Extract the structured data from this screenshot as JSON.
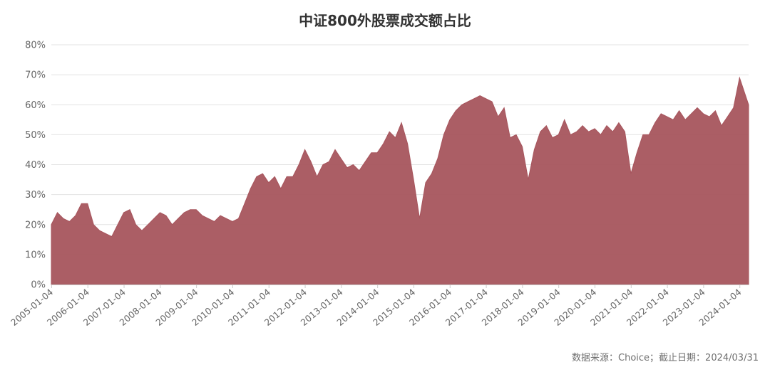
{
  "chart_data": {
    "type": "area",
    "title": "中证800外股票成交额占比",
    "source": "数据来源：Choice；截止日期：2024/03/31",
    "xlabel": "",
    "ylabel": "",
    "ylim": [
      0,
      0.8
    ],
    "yticks": [
      "0%",
      "10%",
      "20%",
      "30%",
      "40%",
      "50%",
      "60%",
      "70%",
      "80%"
    ],
    "xticks": [
      "2005-01-04",
      "2006-01-04",
      "2007-01-04",
      "2008-01-04",
      "2009-01-04",
      "2010-01-04",
      "2011-01-04",
      "2012-01-04",
      "2013-01-04",
      "2014-01-04",
      "2015-01-04",
      "2016-01-04",
      "2017-01-04",
      "2018-01-04",
      "2019-01-04",
      "2020-01-04",
      "2021-01-04",
      "2022-01-04",
      "2023-01-04",
      "2024-01-04"
    ],
    "grid": true,
    "color": "#a7555d",
    "x": [
      "2005-01",
      "2005-03",
      "2005-05",
      "2005-07",
      "2005-09",
      "2005-11",
      "2006-01",
      "2006-03",
      "2006-05",
      "2006-07",
      "2006-09",
      "2006-11",
      "2007-01",
      "2007-03",
      "2007-05",
      "2007-07",
      "2007-09",
      "2007-11",
      "2008-01",
      "2008-03",
      "2008-05",
      "2008-07",
      "2008-09",
      "2008-11",
      "2009-01",
      "2009-03",
      "2009-05",
      "2009-07",
      "2009-09",
      "2009-11",
      "2010-01",
      "2010-03",
      "2010-05",
      "2010-07",
      "2010-09",
      "2010-11",
      "2011-01",
      "2011-03",
      "2011-05",
      "2011-07",
      "2011-09",
      "2011-11",
      "2012-01",
      "2012-03",
      "2012-05",
      "2012-07",
      "2012-09",
      "2012-11",
      "2013-01",
      "2013-03",
      "2013-05",
      "2013-07",
      "2013-09",
      "2013-11",
      "2014-01",
      "2014-03",
      "2014-05",
      "2014-07",
      "2014-09",
      "2014-11",
      "2015-01",
      "2015-03",
      "2015-05",
      "2015-07",
      "2015-09",
      "2015-11",
      "2016-01",
      "2016-03",
      "2016-05",
      "2016-07",
      "2016-09",
      "2016-11",
      "2017-01",
      "2017-03",
      "2017-05",
      "2017-07",
      "2017-09",
      "2017-11",
      "2018-01",
      "2018-03",
      "2018-05",
      "2018-07",
      "2018-09",
      "2018-11",
      "2019-01",
      "2019-03",
      "2019-05",
      "2019-07",
      "2019-09",
      "2019-11",
      "2020-01",
      "2020-03",
      "2020-05",
      "2020-07",
      "2020-09",
      "2020-11",
      "2021-01",
      "2021-03",
      "2021-05",
      "2021-07",
      "2021-09",
      "2021-11",
      "2022-01",
      "2022-03",
      "2022-05",
      "2022-07",
      "2022-09",
      "2022-11",
      "2023-01",
      "2023-03",
      "2023-05",
      "2023-07",
      "2023-09",
      "2023-11",
      "2024-01",
      "2024-03"
    ],
    "values": [
      0.2,
      0.24,
      0.22,
      0.21,
      0.23,
      0.27,
      0.27,
      0.2,
      0.18,
      0.17,
      0.16,
      0.2,
      0.24,
      0.25,
      0.2,
      0.18,
      0.2,
      0.22,
      0.24,
      0.23,
      0.2,
      0.22,
      0.24,
      0.25,
      0.25,
      0.23,
      0.22,
      0.21,
      0.23,
      0.22,
      0.21,
      0.22,
      0.27,
      0.32,
      0.36,
      0.37,
      0.34,
      0.36,
      0.32,
      0.36,
      0.36,
      0.4,
      0.45,
      0.41,
      0.36,
      0.4,
      0.41,
      0.45,
      0.42,
      0.39,
      0.4,
      0.38,
      0.41,
      0.44,
      0.44,
      0.47,
      0.51,
      0.49,
      0.54,
      0.47,
      0.35,
      0.22,
      0.34,
      0.37,
      0.42,
      0.5,
      0.55,
      0.58,
      0.6,
      0.61,
      0.62,
      0.63,
      0.62,
      0.61,
      0.56,
      0.59,
      0.49,
      0.5,
      0.46,
      0.35,
      0.45,
      0.51,
      0.53,
      0.49,
      0.5,
      0.55,
      0.5,
      0.51,
      0.53,
      0.51,
      0.52,
      0.5,
      0.53,
      0.51,
      0.54,
      0.51,
      0.37,
      0.44,
      0.5,
      0.5,
      0.54,
      0.57,
      0.56,
      0.55,
      0.58,
      0.55,
      0.57,
      0.59,
      0.57,
      0.56,
      0.58,
      0.53,
      0.56,
      0.59,
      0.69,
      0.6
    ]
  }
}
